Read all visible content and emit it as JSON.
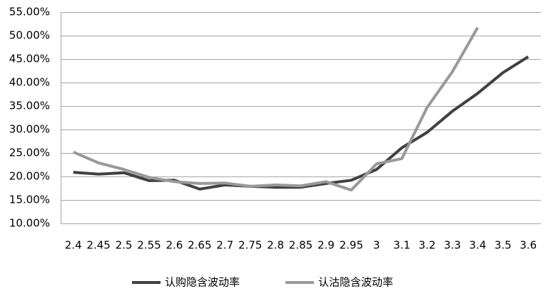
{
  "chart_data": {
    "type": "line",
    "categories": [
      "2.4",
      "2.45",
      "2.5",
      "2.55",
      "2.6",
      "2.65",
      "2.7",
      "2.75",
      "2.8",
      "2.85",
      "2.9",
      "2.95",
      "3",
      "3.1",
      "3.2",
      "3.3",
      "3.4",
      "3.5",
      "3.6"
    ],
    "series": [
      {
        "name": "认购隐含波动率",
        "color": "#404040",
        "values": [
          20.9,
          20.5,
          20.8,
          19.1,
          19.2,
          17.3,
          18.2,
          17.9,
          17.7,
          17.7,
          18.5,
          19.2,
          21.5,
          26.1,
          29.4,
          33.9,
          37.7,
          42.1,
          45.5
        ]
      },
      {
        "name": "认沽隐含波动率",
        "color": "#999999",
        "values": [
          25.2,
          22.9,
          21.5,
          19.8,
          18.9,
          18.5,
          18.6,
          17.9,
          18.2,
          18.0,
          18.9,
          17.1,
          22.7,
          23.8,
          34.7,
          42.3,
          51.7,
          null,
          null
        ]
      }
    ],
    "ylim": [
      10,
      55
    ],
    "yticks": [
      {
        "value": 10,
        "label": "10.00%"
      },
      {
        "value": 15,
        "label": "15.00%"
      },
      {
        "value": 20,
        "label": "20.00%"
      },
      {
        "value": 25,
        "label": "25.00%"
      },
      {
        "value": 30,
        "label": "30.00%"
      },
      {
        "value": 35,
        "label": "35.00%"
      },
      {
        "value": 40,
        "label": "40.00%"
      },
      {
        "value": 45,
        "label": "45.00%"
      },
      {
        "value": 50,
        "label": "50.00%"
      },
      {
        "value": 55,
        "label": "55.00%"
      }
    ],
    "grid": true,
    "legend": "bottom"
  }
}
